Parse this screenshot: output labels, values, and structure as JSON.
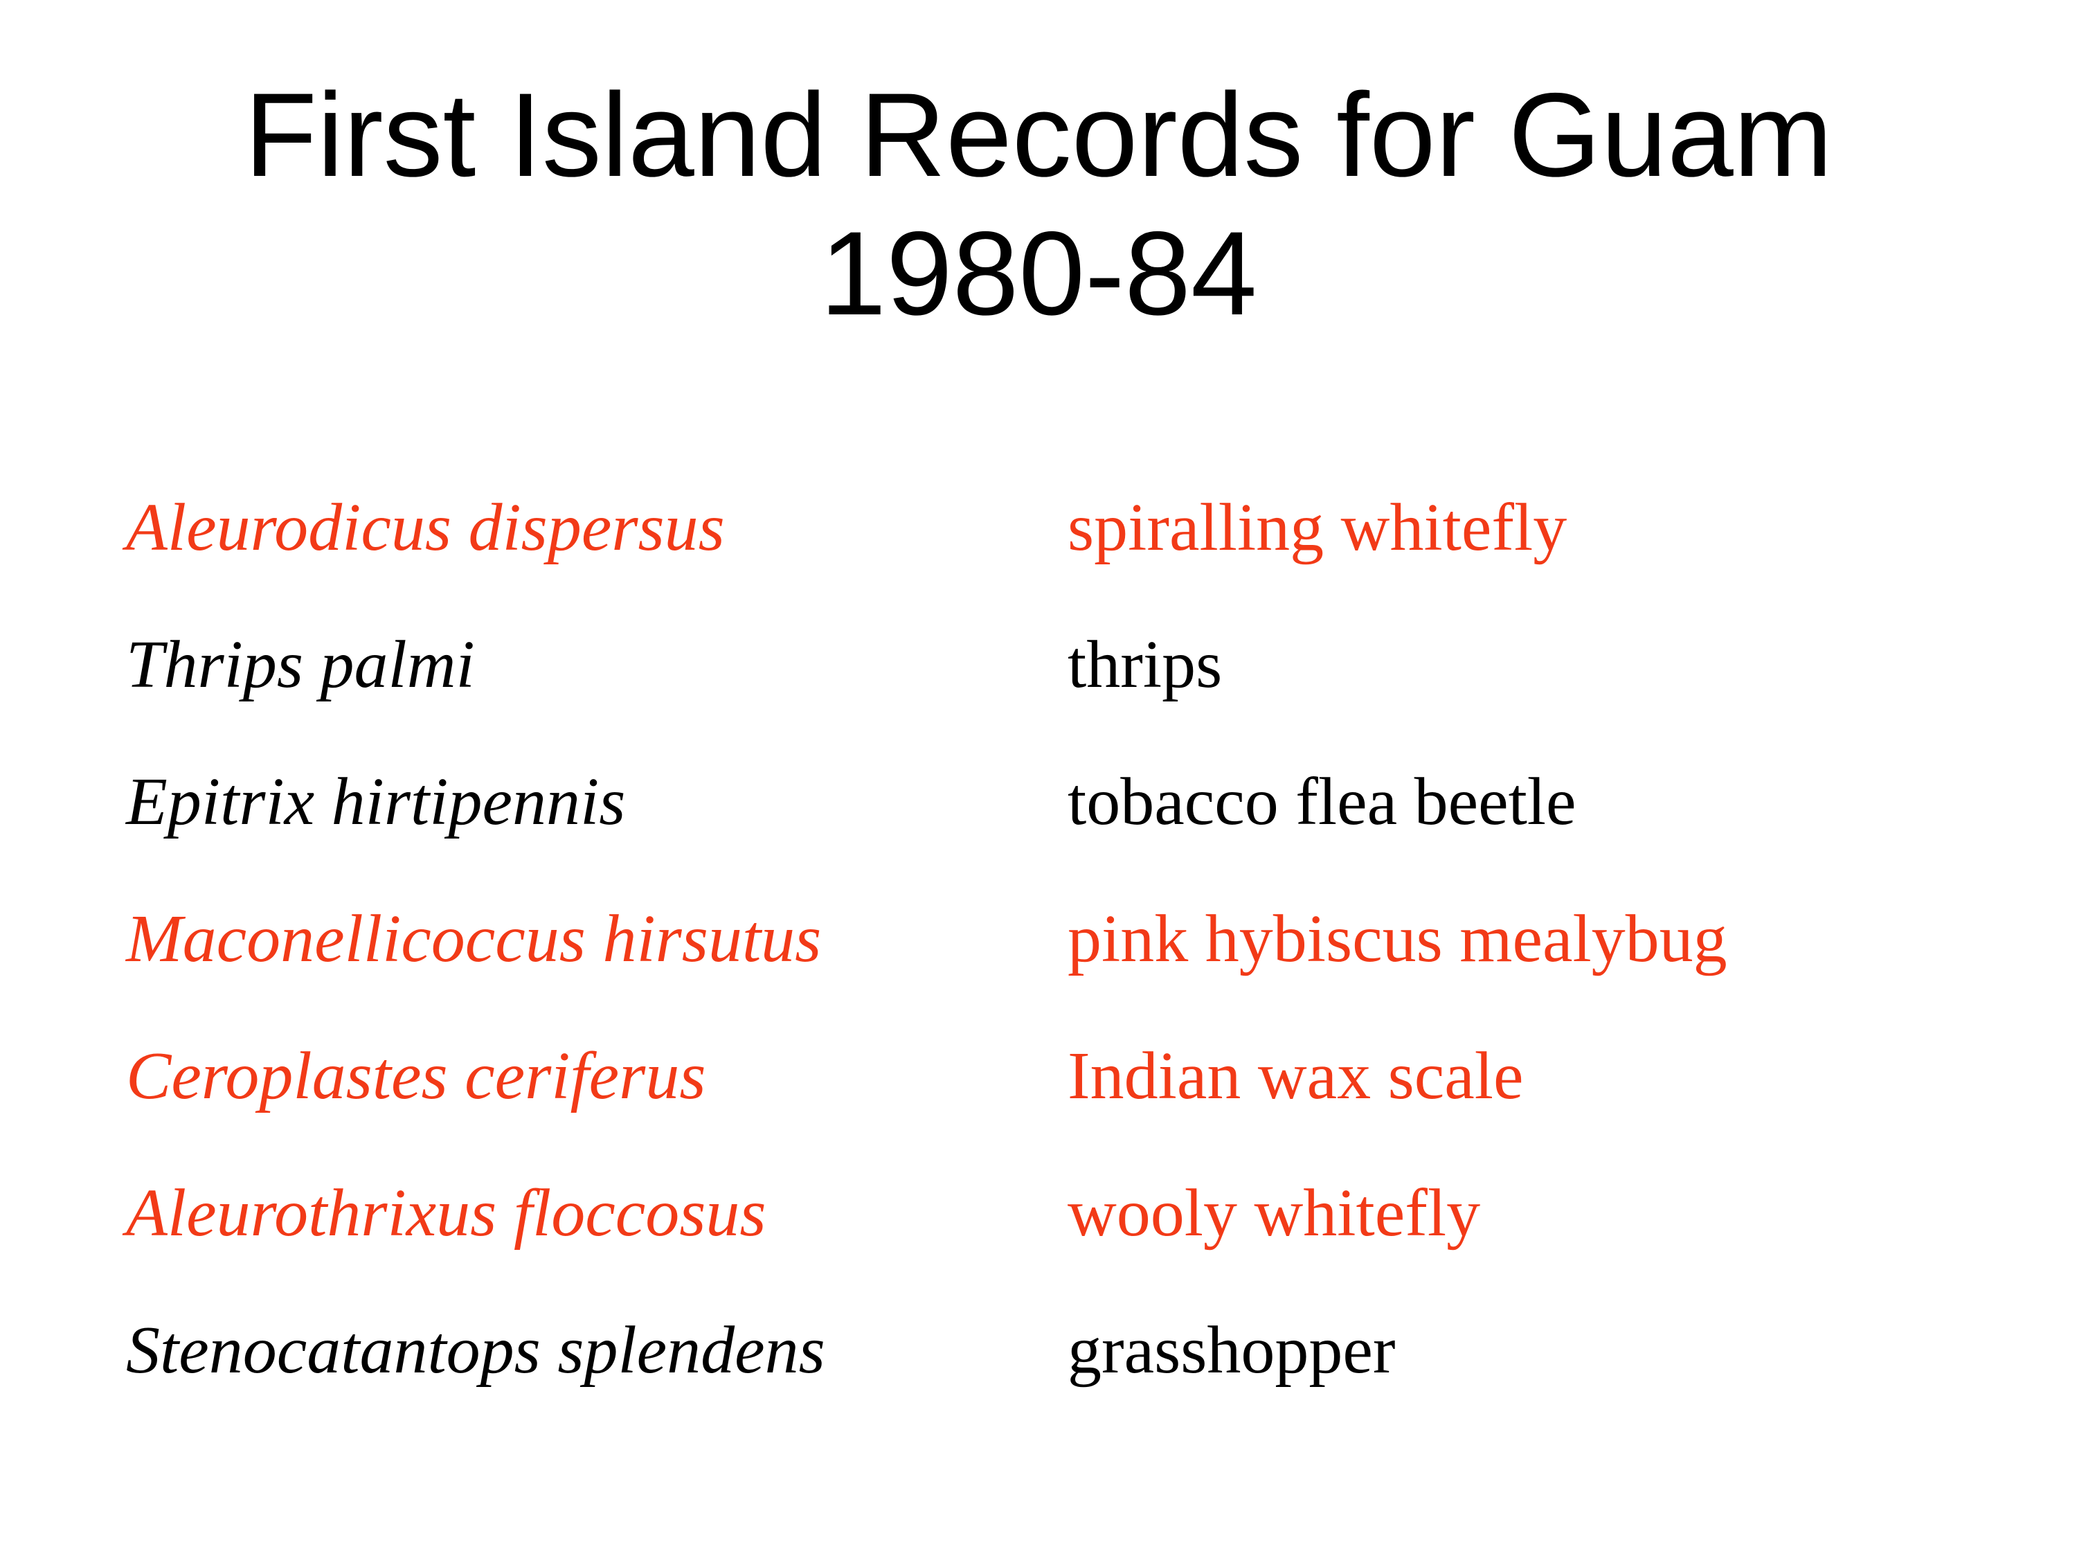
{
  "slide": {
    "title_line1": "First Island Records for Guam",
    "title_line2": "1980-84",
    "records": [
      {
        "scientific": "Aleurodicus dispersus",
        "common": "spiralling whitefly",
        "highlight": true
      },
      {
        "scientific": "Thrips palmi",
        "common": "thrips",
        "highlight": false
      },
      {
        "scientific": "Epitrix hirtipennis",
        "common": "tobacco flea beetle",
        "highlight": false
      },
      {
        "scientific": "Maconellicoccus hirsutus",
        "common": "pink hybiscus mealybug",
        "highlight": true
      },
      {
        "scientific": "Ceroplastes ceriferus",
        "common": "Indian wax scale",
        "highlight": true
      },
      {
        "scientific": "Aleurothrixus floccosus",
        "common": "wooly whitefly",
        "highlight": true
      },
      {
        "scientific": "Stenocatantops splendens",
        "common": "grasshopper",
        "highlight": false
      }
    ]
  },
  "colors": {
    "highlight": "#f23a17",
    "normal": "#000000",
    "background": "#ffffff"
  }
}
